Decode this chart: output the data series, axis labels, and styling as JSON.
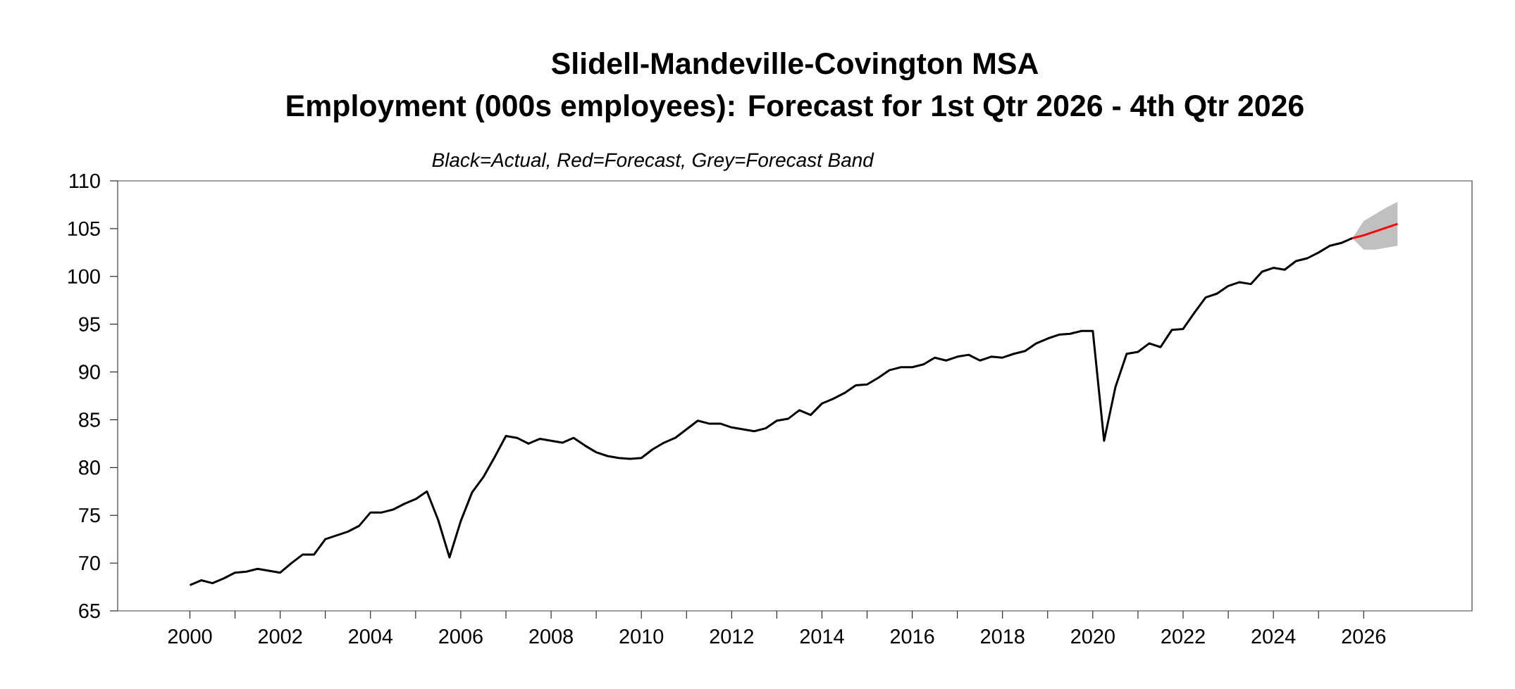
{
  "chart_data": {
    "type": "line",
    "title": "Slidell-Mandeville-Covington MSA",
    "subtitle": "Employment (000s employees): Forecast for 1st Qtr 2026 - 4th Qtr 2026",
    "annotations": [
      "Black=Actual, Red=Forecast, Grey=Forecast Band"
    ],
    "xlim": [
      1998.4,
      2028.4
    ],
    "ylim": [
      65,
      110
    ],
    "xticks": [
      2000,
      {
        "value": 2001,
        "label": null
      },
      2002,
      {
        "value": 2003,
        "label": null
      },
      2004,
      {
        "value": 2005,
        "label": null
      },
      2006,
      {
        "value": 2007,
        "label": null
      },
      2008,
      {
        "value": 2009,
        "label": null
      },
      2010,
      {
        "value": 2011,
        "label": null
      },
      2012,
      {
        "value": 2013,
        "label": null
      },
      2014,
      {
        "value": 2015,
        "label": null
      },
      2016,
      {
        "value": 2017,
        "label": null
      },
      2018,
      {
        "value": 2019,
        "label": null
      },
      2020,
      {
        "value": 2021,
        "label": null
      },
      2022,
      {
        "value": 2023,
        "label": null
      },
      2024,
      {
        "value": 2025,
        "label": null
      },
      2026
    ],
    "yticks": [
      65,
      70,
      75,
      80,
      85,
      90,
      95,
      100,
      105,
      110
    ],
    "series": [
      {
        "color": "#000000",
        "x": [
          2000,
          2000.25,
          2000.5,
          2000.75,
          2001,
          2001.25,
          2001.5,
          2001.75,
          2002,
          2002.25,
          2002.5,
          2002.75,
          2003,
          2003.25,
          2003.5,
          2003.75,
          2004,
          2004.25,
          2004.5,
          2004.75,
          2005,
          2005.25,
          2005.5,
          2005.75,
          2006,
          2006.25,
          2006.5,
          2006.75,
          2007,
          2007.25,
          2007.5,
          2007.75,
          2008,
          2008.25,
          2008.5,
          2008.75,
          2009,
          2009.25,
          2009.5,
          2009.75,
          2010,
          2010.25,
          2010.5,
          2010.75,
          2011,
          2011.25,
          2011.5,
          2011.75,
          2012,
          2012.25,
          2012.5,
          2012.75,
          2013,
          2013.25,
          2013.5,
          2013.75,
          2014,
          2014.25,
          2014.5,
          2014.75,
          2015,
          2015.25,
          2015.5,
          2015.75,
          2016,
          2016.25,
          2016.5,
          2016.75,
          2017,
          2017.25,
          2017.5,
          2017.75,
          2018,
          2018.25,
          2018.5,
          2018.75,
          2019,
          2019.25,
          2019.5,
          2019.75,
          2020,
          2020.25,
          2020.5,
          2020.75,
          2021,
          2021.25,
          2021.5,
          2021.75,
          2022,
          2022.25,
          2022.5,
          2022.75,
          2023,
          2023.25,
          2023.5,
          2023.75,
          2024,
          2024.25,
          2024.5,
          2024.75,
          2025,
          2025.25,
          2025.5,
          2025.75
        ],
        "values": [
          67.7,
          68.2,
          67.9,
          68.4,
          69.0,
          69.1,
          69.4,
          69.2,
          69.0,
          70.0,
          70.9,
          70.9,
          72.5,
          72.9,
          73.3,
          73.9,
          75.3,
          75.3,
          75.6,
          76.2,
          76.7,
          77.5,
          74.5,
          70.6,
          74.4,
          77.4,
          79.0,
          81.1,
          83.3,
          83.1,
          82.5,
          83.0,
          82.8,
          82.6,
          83.1,
          82.3,
          81.6,
          81.2,
          81.0,
          80.9,
          81.0,
          81.9,
          82.6,
          83.1,
          84.0,
          84.9,
          84.6,
          84.6,
          84.2,
          84.0,
          83.8,
          84.1,
          84.9,
          85.1,
          86.0,
          85.5,
          86.7,
          87.2,
          87.8,
          88.6,
          88.7,
          89.4,
          90.2,
          90.5,
          90.5,
          90.8,
          91.5,
          91.2,
          91.6,
          91.8,
          91.2,
          91.6,
          91.5,
          91.9,
          92.2,
          93.0,
          93.5,
          93.9,
          94.0,
          94.3,
          94.3,
          82.8,
          88.4,
          91.9,
          92.1,
          93.0,
          92.6,
          94.4,
          94.5,
          96.2,
          97.8,
          98.2,
          99.0,
          99.4,
          99.2,
          100.5,
          100.9,
          100.7,
          101.6,
          101.9,
          102.5,
          103.2,
          103.5,
          104.0
        ]
      },
      {
        "color": "#ff0000",
        "x": [
          2025.75,
          2026,
          2026.25,
          2026.5,
          2026.75
        ],
        "values": [
          104.0,
          104.3,
          104.7,
          105.1,
          105.5
        ],
        "lower": [
          104.0,
          102.8,
          102.8,
          103.0,
          103.2
        ],
        "upper": [
          104.0,
          105.8,
          106.5,
          107.2,
          107.8
        ]
      }
    ]
  }
}
